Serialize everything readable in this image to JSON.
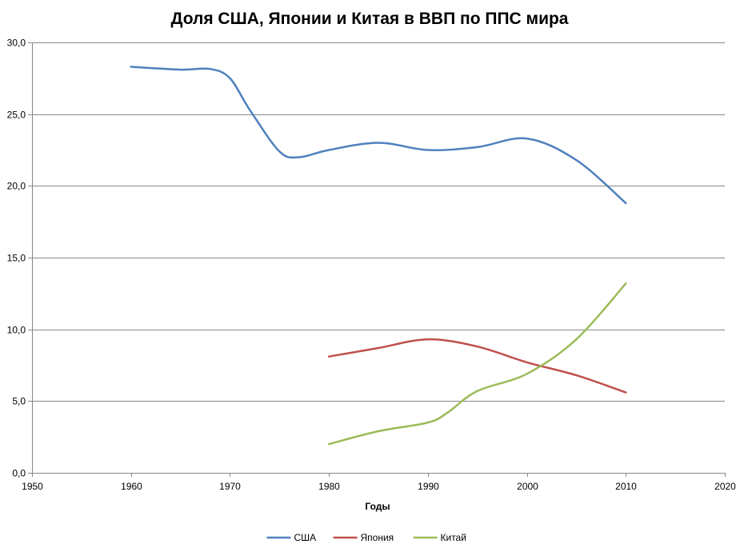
{
  "chart_data": {
    "type": "line",
    "title": "Доля США, Японии и Китая в ВВП по ППС мира",
    "xlabel": "Годы",
    "ylabel": "",
    "xlim": [
      1950,
      2020
    ],
    "ylim": [
      0,
      30
    ],
    "x_ticks": [
      1950,
      1960,
      1970,
      1980,
      1990,
      2000,
      2010,
      2020
    ],
    "y_ticks": [
      0,
      5,
      10,
      15,
      20,
      25,
      30
    ],
    "y_tick_labels": [
      "0,0",
      "5,0",
      "10,0",
      "15,0",
      "20,0",
      "25,0",
      "30,0"
    ],
    "grid": "horizontal",
    "legend_position": "bottom",
    "series": [
      {
        "name": "США",
        "color": "#4F81BD",
        "x": [
          1960,
          1965,
          1968,
          1970,
          1972,
          1975,
          1977,
          1980,
          1985,
          1990,
          1995,
          2000,
          2005,
          2010
        ],
        "y": [
          28.3,
          28.1,
          28.15,
          27.5,
          25.3,
          22.4,
          22.0,
          22.5,
          23.0,
          22.5,
          22.7,
          23.3,
          21.8,
          18.8
        ]
      },
      {
        "name": "Япония",
        "color": "#C0504D",
        "x": [
          1980,
          1985,
          1990,
          1995,
          2000,
          2005,
          2010
        ],
        "y": [
          8.1,
          8.7,
          9.3,
          8.8,
          7.7,
          6.8,
          5.6
        ]
      },
      {
        "name": "Китай",
        "color": "#9BBB59",
        "x": [
          1980,
          1985,
          1990,
          1992,
          1995,
          2000,
          2005,
          2010
        ],
        "y": [
          2.0,
          2.9,
          3.5,
          4.2,
          5.7,
          6.9,
          9.3,
          13.2
        ]
      }
    ]
  }
}
